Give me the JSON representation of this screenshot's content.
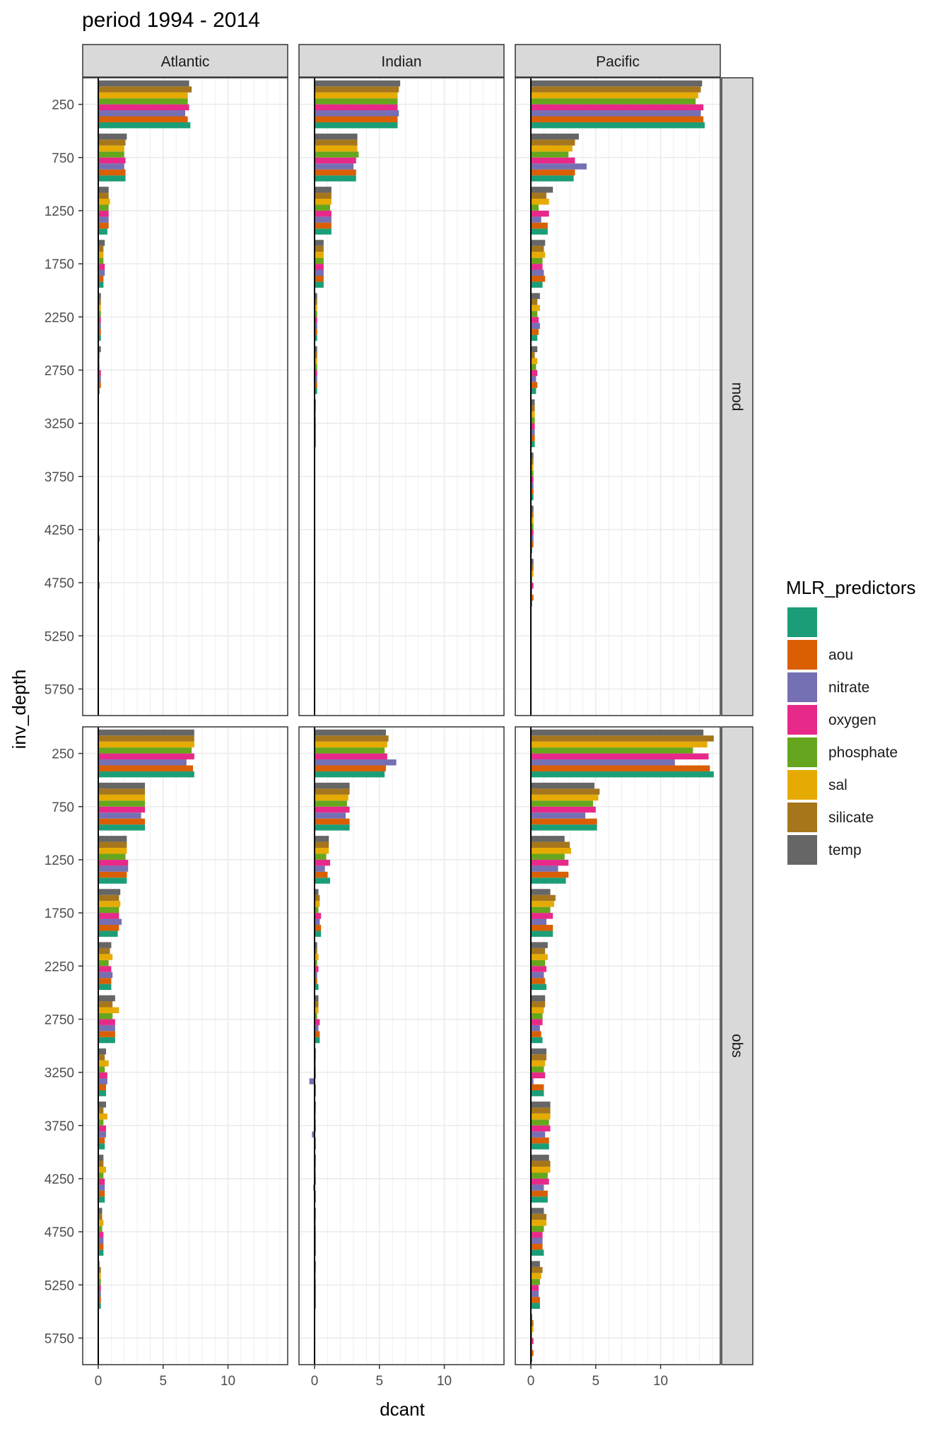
{
  "chart_data": {
    "type": "bar",
    "orientation": "horizontal",
    "title": "period 1994 - 2014",
    "xlabel": "dcant",
    "ylabel": "inv_depth",
    "xlim": [
      -1.2,
      14.6
    ],
    "x_ticks": [
      0,
      5,
      10
    ],
    "y_ticks": [
      250,
      750,
      1250,
      1750,
      2250,
      2750,
      3250,
      3750,
      4250,
      4750,
      5250,
      5750
    ],
    "grid": true,
    "legend_position": "right",
    "legend": {
      "title": "MLR_predictors",
      "entries": [
        {
          "label": "",
          "color": "#1B9E77"
        },
        {
          "label": "aou",
          "color": "#D95F02"
        },
        {
          "label": "nitrate",
          "color": "#7570B3"
        },
        {
          "label": "oxygen",
          "color": "#E7298A"
        },
        {
          "label": "phosphate",
          "color": "#66A61E"
        },
        {
          "label": "sal",
          "color": "#E6AB02"
        },
        {
          "label": "silicate",
          "color": "#A6761D"
        },
        {
          "label": "temp",
          "color": "#666666"
        }
      ]
    },
    "facet_cols": [
      "Atlantic",
      "Indian",
      "Pacific"
    ],
    "facet_rows": [
      "mod",
      "obs"
    ],
    "series_order": [
      "",
      "aou",
      "nitrate",
      "oxygen",
      "phosphate",
      "sal",
      "silicate",
      "temp"
    ],
    "panels": [
      {
        "row": "mod",
        "col": "Atlantic",
        "values": [
          [
            7.1,
            6.9,
            6.7,
            7.0,
            6.9,
            6.9,
            7.2,
            7.0
          ],
          [
            2.1,
            2.1,
            2.0,
            2.1,
            2.0,
            2.0,
            2.1,
            2.2
          ],
          [
            0.7,
            0.8,
            0.8,
            0.8,
            0.8,
            0.9,
            0.8,
            0.8
          ],
          [
            0.4,
            0.4,
            0.5,
            0.5,
            0.4,
            0.4,
            0.4,
            0.5
          ],
          [
            0.2,
            0.2,
            0.2,
            0.2,
            0.2,
            0.2,
            0.2,
            0.2
          ],
          [
            0.1,
            0.2,
            0.2,
            0.2,
            0.1,
            0.1,
            0.1,
            0.2
          ],
          [
            0.05,
            0.05,
            0.05,
            0.05,
            0.05,
            0.05,
            0.05,
            0.05
          ],
          [
            0.05,
            0.05,
            0.05,
            0.05,
            0.05,
            0.05,
            0.05,
            0.05
          ],
          [
            0.05,
            0.05,
            0.1,
            0.05,
            0.05,
            0.05,
            0.05,
            0.05
          ],
          [
            0.05,
            0.05,
            0.05,
            0.1,
            0.05,
            0.05,
            0.05,
            0.05
          ],
          [
            0.05,
            0.05,
            0.05,
            0.05,
            0.05,
            0.05,
            0.05,
            0.05
          ],
          [
            0,
            0,
            0,
            0,
            0,
            0,
            0,
            0
          ]
        ]
      },
      {
        "row": "mod",
        "col": "Indian",
        "values": [
          [
            6.4,
            6.4,
            6.5,
            6.4,
            6.4,
            6.4,
            6.5,
            6.6
          ],
          [
            3.2,
            3.2,
            3.0,
            3.2,
            3.4,
            3.3,
            3.3,
            3.3
          ],
          [
            1.3,
            1.3,
            1.3,
            1.3,
            1.2,
            1.3,
            1.3,
            1.3
          ],
          [
            0.7,
            0.7,
            0.7,
            0.7,
            0.7,
            0.7,
            0.7,
            0.7
          ],
          [
            0.2,
            0.2,
            0.2,
            0.2,
            0.2,
            0.2,
            0.2,
            0.2
          ],
          [
            0.2,
            0.2,
            0.2,
            0.2,
            0.2,
            0.2,
            0.2,
            0.2
          ],
          [
            0.1,
            0.1,
            0.1,
            0.1,
            0.1,
            0.1,
            0.1,
            0.1
          ],
          [
            0.05,
            0.05,
            0.05,
            0.05,
            0.05,
            0.05,
            0.05,
            0.05
          ],
          [
            0.05,
            0.05,
            0.05,
            0.05,
            0.05,
            0.05,
            0.05,
            0.05
          ],
          [
            0.05,
            0.05,
            0.05,
            0.05,
            0.05,
            0.05,
            0.05,
            0.05
          ],
          [
            0.05,
            0.05,
            0.05,
            0.05,
            0.05,
            0.05,
            0.05,
            0.05
          ],
          [
            0,
            0,
            0,
            0,
            0,
            0,
            0,
            0
          ]
        ]
      },
      {
        "row": "mod",
        "col": "Pacific",
        "values": [
          [
            13.4,
            13.3,
            13.1,
            13.3,
            12.7,
            12.9,
            13.1,
            13.2
          ],
          [
            3.3,
            3.4,
            4.3,
            3.4,
            2.9,
            3.2,
            3.4,
            3.7
          ],
          [
            1.3,
            1.3,
            0.8,
            1.4,
            0.6,
            1.4,
            1.2,
            1.7
          ],
          [
            0.9,
            1.1,
            1.0,
            0.9,
            0.9,
            1.1,
            1.0,
            1.1
          ],
          [
            0.5,
            0.6,
            0.7,
            0.6,
            0.5,
            0.7,
            0.5,
            0.7
          ],
          [
            0.4,
            0.5,
            0.4,
            0.5,
            0.4,
            0.5,
            0.3,
            0.5
          ],
          [
            0.3,
            0.3,
            0.3,
            0.3,
            0.3,
            0.3,
            0.3,
            0.3
          ],
          [
            0.2,
            0.2,
            0.2,
            0.2,
            0.2,
            0.2,
            0.2,
            0.2
          ],
          [
            0.1,
            0.2,
            0.2,
            0.2,
            0.2,
            0.2,
            0.2,
            0.2
          ],
          [
            0.1,
            0.2,
            0.1,
            0.2,
            0.1,
            0.2,
            0.2,
            0.2
          ],
          [
            0.05,
            0.05,
            0.05,
            0.05,
            0.05,
            0.05,
            0.05,
            0.05
          ],
          [
            0,
            0,
            0,
            0,
            0,
            0,
            0,
            0
          ]
        ]
      },
      {
        "row": "obs",
        "col": "Atlantic",
        "values": [
          [
            7.4,
            7.3,
            6.8,
            7.4,
            7.2,
            7.4,
            7.4,
            7.4
          ],
          [
            3.6,
            3.6,
            3.3,
            3.6,
            3.6,
            3.6,
            3.6,
            3.6
          ],
          [
            2.2,
            2.2,
            2.3,
            2.3,
            2.1,
            2.2,
            2.2,
            2.2
          ],
          [
            1.5,
            1.6,
            1.8,
            1.6,
            1.6,
            1.7,
            1.6,
            1.7
          ],
          [
            1.0,
            1.0,
            1.1,
            1.0,
            0.8,
            1.1,
            0.9,
            1.0
          ],
          [
            1.3,
            1.3,
            1.3,
            1.3,
            1.1,
            1.6,
            1.1,
            1.3
          ],
          [
            0.6,
            0.6,
            0.7,
            0.7,
            0.5,
            0.8,
            0.5,
            0.6
          ],
          [
            0.5,
            0.5,
            0.6,
            0.6,
            0.4,
            0.7,
            0.4,
            0.6
          ],
          [
            0.5,
            0.5,
            0.5,
            0.5,
            0.4,
            0.6,
            0.4,
            0.4
          ],
          [
            0.4,
            0.4,
            0.4,
            0.4,
            0.3,
            0.4,
            0.3,
            0.3
          ],
          [
            0.2,
            0.2,
            0.2,
            0.2,
            0.2,
            0.2,
            0.2,
            0.1
          ],
          [
            0,
            0,
            0,
            0,
            0,
            0,
            0,
            0
          ]
        ]
      },
      {
        "row": "obs",
        "col": "Indian",
        "values": [
          [
            5.4,
            5.5,
            6.3,
            5.6,
            5.4,
            5.6,
            5.7,
            5.5
          ],
          [
            2.7,
            2.7,
            2.4,
            2.7,
            2.5,
            2.6,
            2.7,
            2.7
          ],
          [
            1.2,
            1.0,
            0.8,
            1.2,
            0.9,
            1.1,
            1.1,
            1.1
          ],
          [
            0.5,
            0.5,
            0.4,
            0.5,
            0.3,
            0.4,
            0.4,
            0.3
          ],
          [
            0.3,
            0.2,
            0.2,
            0.3,
            0.2,
            0.3,
            0.2,
            0.2
          ],
          [
            0.4,
            0.4,
            0.3,
            0.4,
            0.2,
            0.3,
            0.3,
            0.3
          ],
          [
            0.1,
            0.1,
            -0.4,
            0.1,
            0.1,
            0.1,
            0.1,
            0.1
          ],
          [
            0.1,
            0.1,
            -0.2,
            0.1,
            0.1,
            0.1,
            0.1,
            0.1
          ],
          [
            0.1,
            0.1,
            -0.1,
            0.1,
            0.1,
            0.1,
            0.1,
            0.1
          ],
          [
            0.1,
            0.1,
            0.1,
            0.1,
            0.1,
            0.1,
            0.1,
            0.1
          ],
          [
            0.1,
            0.1,
            0.1,
            0.1,
            0.1,
            0.1,
            0.1,
            0.1
          ],
          [
            0,
            0,
            0,
            0,
            0,
            0,
            0,
            0
          ]
        ]
      },
      {
        "row": "obs",
        "col": "Pacific",
        "values": [
          [
            14.1,
            13.8,
            11.1,
            13.7,
            12.5,
            13.6,
            14.1,
            13.3
          ],
          [
            5.1,
            5.1,
            4.2,
            5.0,
            4.8,
            5.2,
            5.3,
            4.9
          ],
          [
            2.7,
            2.9,
            2.1,
            2.9,
            2.6,
            3.1,
            3.0,
            2.6
          ],
          [
            1.7,
            1.7,
            1.2,
            1.7,
            1.5,
            1.8,
            1.9,
            1.5
          ],
          [
            1.2,
            1.1,
            1.0,
            1.2,
            1.1,
            1.3,
            1.1,
            1.3
          ],
          [
            0.9,
            0.8,
            0.7,
            0.9,
            0.9,
            1.0,
            1.1,
            1.1
          ],
          [
            1.0,
            1.0,
            0.2,
            1.1,
            1.0,
            1.1,
            1.2,
            1.2
          ],
          [
            1.4,
            1.4,
            1.1,
            1.5,
            1.4,
            1.5,
            1.5,
            1.5
          ],
          [
            1.3,
            1.3,
            1.0,
            1.4,
            1.3,
            1.5,
            1.5,
            1.4
          ],
          [
            1.0,
            0.9,
            0.9,
            0.9,
            1.0,
            1.2,
            1.2,
            1.0
          ],
          [
            0.7,
            0.7,
            0.6,
            0.6,
            0.7,
            0.8,
            0.9,
            0.7
          ],
          [
            0.1,
            0.2,
            0.1,
            0.2,
            0.1,
            0.2,
            0.2,
            0.1
          ]
        ]
      }
    ]
  }
}
